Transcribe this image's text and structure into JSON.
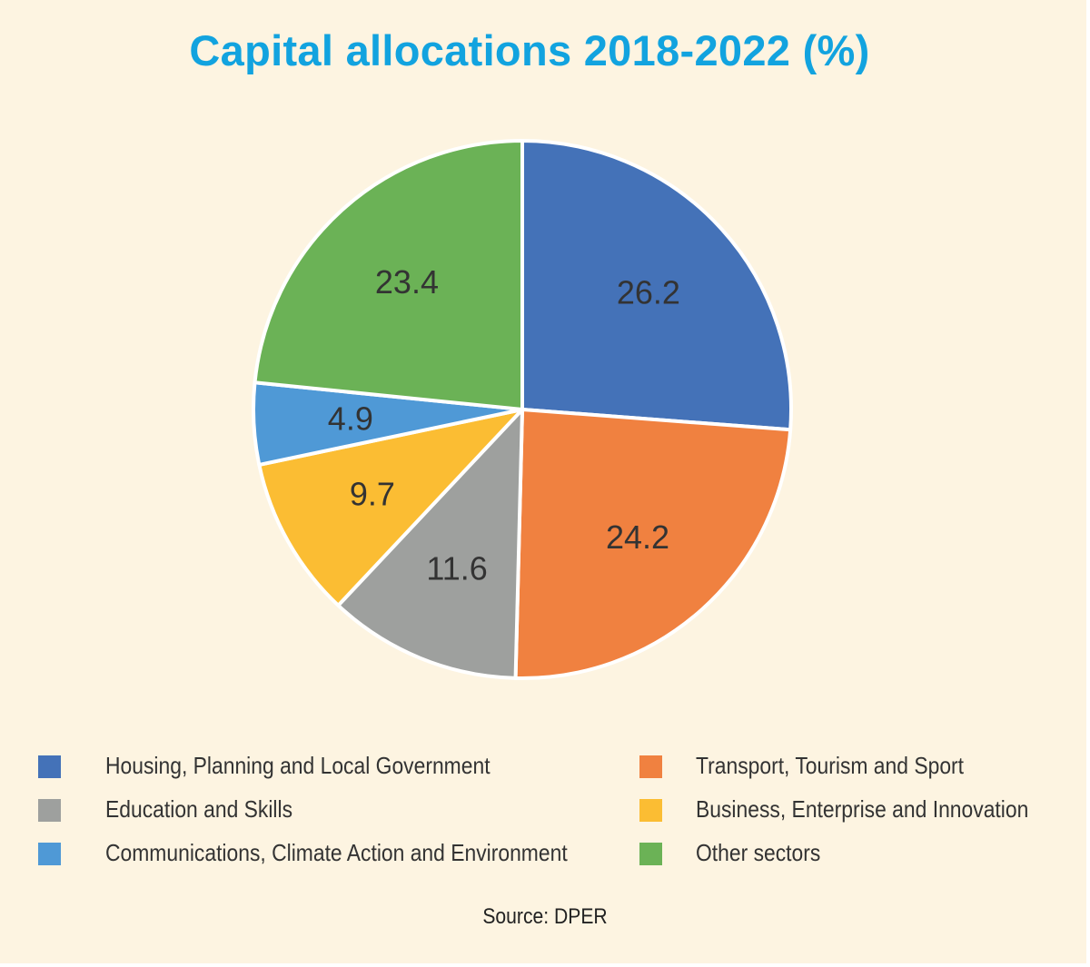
{
  "chart_data": {
    "type": "pie",
    "title": "Capital allocations 2018-2022 (%)",
    "source": "Source: DPER",
    "legend_position": "bottom",
    "slices": [
      {
        "name": "Housing, Planning and Local Government",
        "value": 26.2,
        "label": "26.2",
        "color": "#4472b8"
      },
      {
        "name": "Transport, Tourism and Sport",
        "value": 24.2,
        "label": "24.2",
        "color": "#f08140"
      },
      {
        "name": "Education and Skills",
        "value": 11.6,
        "label": "11.6",
        "color": "#9ea09e"
      },
      {
        "name": "Business, Enterprise and Innovation",
        "value": 9.7,
        "label": "9.7",
        "color": "#fbbd33"
      },
      {
        "name": "Communications, Climate Action and Environment",
        "value": 4.9,
        "label": "4.9",
        "color": "#4f99d6"
      },
      {
        "name": "Other sectors",
        "value": 23.4,
        "label": "23.4",
        "color": "#6bb256"
      }
    ]
  },
  "colors": {
    "background": "#fdf4e1",
    "title": "#12a3df",
    "slice_border": "#ffffff",
    "text": "#333333"
  }
}
